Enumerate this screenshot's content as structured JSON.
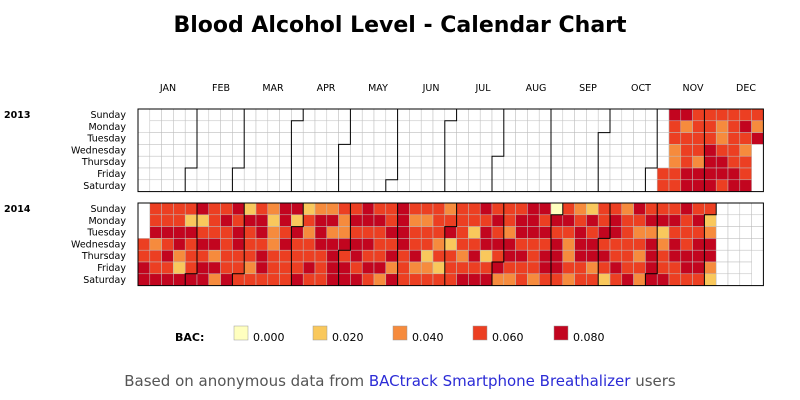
{
  "chart_data": {
    "type": "heatmap",
    "title": "Blood Alcohol Level - Calendar Chart",
    "months": [
      "JAN",
      "FEB",
      "MAR",
      "APR",
      "MAY",
      "JUN",
      "JUL",
      "AUG",
      "SEP",
      "OCT",
      "NOV",
      "DEC"
    ],
    "weekdays": [
      "Sunday",
      "Monday",
      "Tuesday",
      "Wednesday",
      "Thursday",
      "Friday",
      "Saturday"
    ],
    "years": [
      "2013",
      "2014"
    ],
    "legend": {
      "title": "BAC:",
      "items": [
        {
          "value": "0.000",
          "color": "#ffffbf"
        },
        {
          "value": "0.020",
          "color": "#f9c85c"
        },
        {
          "value": "0.040",
          "color": "#f68b3d"
        },
        {
          "value": "0.060",
          "color": "#ec3f22"
        },
        {
          "value": "0.080",
          "color": "#c2051f"
        }
      ]
    },
    "values": {
      "2013": [
        {
          "week": 44,
          "days": [
            null,
            null,
            null,
            null,
            null,
            0.06,
            0.06
          ]
        },
        {
          "week": 45,
          "days": [
            0.08,
            0.06,
            0.06,
            0.04,
            0.04,
            0.06,
            0.06
          ]
        },
        {
          "week": 46,
          "days": [
            0.08,
            0.04,
            0.06,
            0.06,
            0.06,
            0.08,
            0.08
          ]
        },
        {
          "week": 47,
          "days": [
            0.06,
            0.06,
            0.06,
            0.06,
            0.04,
            0.08,
            0.08
          ]
        },
        {
          "week": 48,
          "days": [
            0.06,
            0.06,
            0.06,
            0.08,
            0.08,
            0.08,
            0.08
          ]
        },
        {
          "week": 49,
          "days": [
            0.06,
            0.04,
            0.04,
            0.06,
            0.08,
            0.08,
            0.06
          ]
        },
        {
          "week": 50,
          "days": [
            0.06,
            0.06,
            0.06,
            0.06,
            0.06,
            0.08,
            0.08
          ]
        },
        {
          "week": 51,
          "days": [
            0.06,
            0.08,
            0.06,
            0.04,
            0.06,
            0.06,
            0.08
          ]
        },
        {
          "week": 52,
          "days": [
            0.06,
            0.04,
            0.08,
            null,
            null,
            null,
            null
          ]
        }
      ],
      "2014": {
        "first_week": 1,
        "last_week": 48,
        "sep_light": [
          0.0,
          0.02
        ],
        "base": 0.06
      }
    }
  },
  "footer": {
    "prefix": "Based on anonymous data from ",
    "link": "BACtrack Smartphone Breathalizer",
    "suffix": " users"
  }
}
